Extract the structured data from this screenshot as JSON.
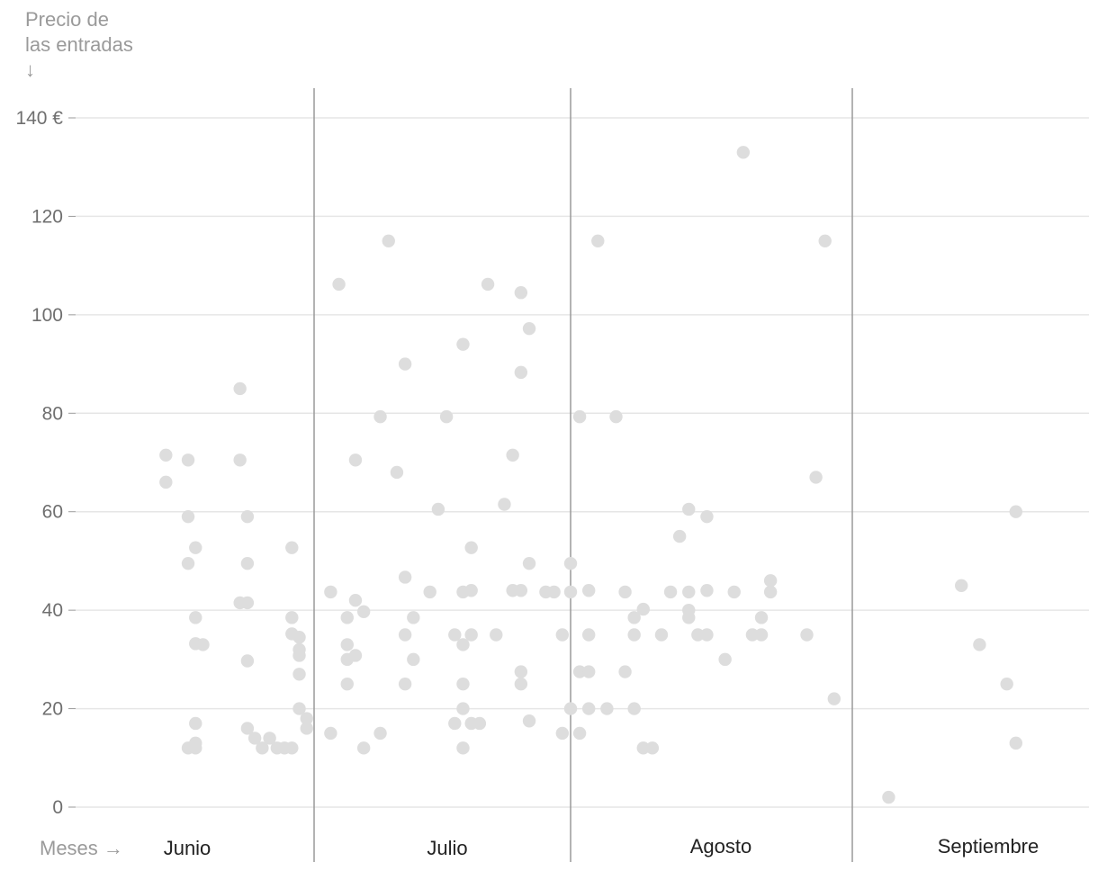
{
  "chart_data": {
    "type": "scatter",
    "ylabel_lines": [
      "Precio de",
      "las entradas",
      "↓"
    ],
    "xlabel": "Meses →",
    "y_ticks": [
      {
        "value": 0,
        "label": "0"
      },
      {
        "value": 20,
        "label": "20"
      },
      {
        "value": 40,
        "label": "40"
      },
      {
        "value": 60,
        "label": "60"
      },
      {
        "value": 80,
        "label": "80"
      },
      {
        "value": 100,
        "label": "100"
      },
      {
        "value": 120,
        "label": "120"
      },
      {
        "value": 140,
        "label": "140 €"
      }
    ],
    "ylim": [
      0,
      140
    ],
    "xlim": [
      "2023-06-01",
      "2023-09-30"
    ],
    "grid": true,
    "months": [
      {
        "label": "Junio",
        "start": "2023-06-01"
      },
      {
        "label": "Julio",
        "start": "2023-07-01"
      },
      {
        "label": "Agosto",
        "start": "2023-08-01"
      },
      {
        "label": "Septiembre",
        "start": "2023-09-01"
      }
    ],
    "month_boundaries": [
      "2023-07-01",
      "2023-08-01",
      "2023-09-01"
    ],
    "point_color": "#dddddd",
    "points": [
      {
        "x": "2023-06-11",
        "y": 71.5
      },
      {
        "x": "2023-06-11",
        "y": 66
      },
      {
        "x": "2023-06-14",
        "y": 70.5
      },
      {
        "x": "2023-06-14",
        "y": 59
      },
      {
        "x": "2023-06-14",
        "y": 49.5
      },
      {
        "x": "2023-06-14",
        "y": 12
      },
      {
        "x": "2023-06-15",
        "y": 52.7
      },
      {
        "x": "2023-06-15",
        "y": 38.5
      },
      {
        "x": "2023-06-15",
        "y": 33.2
      },
      {
        "x": "2023-06-15",
        "y": 17
      },
      {
        "x": "2023-06-15",
        "y": 13
      },
      {
        "x": "2023-06-15",
        "y": 12
      },
      {
        "x": "2023-06-16",
        "y": 33
      },
      {
        "x": "2023-06-21",
        "y": 85
      },
      {
        "x": "2023-06-21",
        "y": 70.5
      },
      {
        "x": "2023-06-21",
        "y": 41.5
      },
      {
        "x": "2023-06-22",
        "y": 59
      },
      {
        "x": "2023-06-22",
        "y": 49.5
      },
      {
        "x": "2023-06-22",
        "y": 41.5
      },
      {
        "x": "2023-06-22",
        "y": 29.7
      },
      {
        "x": "2023-06-22",
        "y": 16
      },
      {
        "x": "2023-06-23",
        "y": 14
      },
      {
        "x": "2023-06-24",
        "y": 12
      },
      {
        "x": "2023-06-25",
        "y": 14
      },
      {
        "x": "2023-06-26",
        "y": 12
      },
      {
        "x": "2023-06-27",
        "y": 12
      },
      {
        "x": "2023-06-28",
        "y": 12
      },
      {
        "x": "2023-06-28",
        "y": 52.7
      },
      {
        "x": "2023-06-28",
        "y": 38.5
      },
      {
        "x": "2023-06-28",
        "y": 35.2
      },
      {
        "x": "2023-06-29",
        "y": 34.5
      },
      {
        "x": "2023-06-29",
        "y": 32
      },
      {
        "x": "2023-06-29",
        "y": 30.8
      },
      {
        "x": "2023-06-29",
        "y": 27
      },
      {
        "x": "2023-06-29",
        "y": 20
      },
      {
        "x": "2023-06-30",
        "y": 18
      },
      {
        "x": "2023-06-30",
        "y": 16
      },
      {
        "x": "2023-07-03",
        "y": 43.7
      },
      {
        "x": "2023-07-03",
        "y": 15
      },
      {
        "x": "2023-07-04",
        "y": 106.2
      },
      {
        "x": "2023-07-05",
        "y": 38.5
      },
      {
        "x": "2023-07-05",
        "y": 33
      },
      {
        "x": "2023-07-05",
        "y": 30
      },
      {
        "x": "2023-07-05",
        "y": 25
      },
      {
        "x": "2023-07-06",
        "y": 70.5
      },
      {
        "x": "2023-07-06",
        "y": 42
      },
      {
        "x": "2023-07-06",
        "y": 30.8
      },
      {
        "x": "2023-07-07",
        "y": 39.7
      },
      {
        "x": "2023-07-07",
        "y": 12
      },
      {
        "x": "2023-07-09",
        "y": 79.3
      },
      {
        "x": "2023-07-09",
        "y": 15
      },
      {
        "x": "2023-07-10",
        "y": 115
      },
      {
        "x": "2023-07-11",
        "y": 68
      },
      {
        "x": "2023-07-12",
        "y": 90
      },
      {
        "x": "2023-07-12",
        "y": 46.7
      },
      {
        "x": "2023-07-12",
        "y": 35
      },
      {
        "x": "2023-07-12",
        "y": 25
      },
      {
        "x": "2023-07-13",
        "y": 38.5
      },
      {
        "x": "2023-07-13",
        "y": 30
      },
      {
        "x": "2023-07-15",
        "y": 43.7
      },
      {
        "x": "2023-07-16",
        "y": 60.5
      },
      {
        "x": "2023-07-17",
        "y": 79.3
      },
      {
        "x": "2023-07-18",
        "y": 35
      },
      {
        "x": "2023-07-18",
        "y": 17
      },
      {
        "x": "2023-07-19",
        "y": 94
      },
      {
        "x": "2023-07-19",
        "y": 43.7
      },
      {
        "x": "2023-07-19",
        "y": 33
      },
      {
        "x": "2023-07-19",
        "y": 25
      },
      {
        "x": "2023-07-19",
        "y": 20
      },
      {
        "x": "2023-07-19",
        "y": 12
      },
      {
        "x": "2023-07-20",
        "y": 52.7
      },
      {
        "x": "2023-07-20",
        "y": 44
      },
      {
        "x": "2023-07-20",
        "y": 35
      },
      {
        "x": "2023-07-20",
        "y": 17
      },
      {
        "x": "2023-07-21",
        "y": 17
      },
      {
        "x": "2023-07-22",
        "y": 106.2
      },
      {
        "x": "2023-07-23",
        "y": 35
      },
      {
        "x": "2023-07-24",
        "y": 61.5
      },
      {
        "x": "2023-07-25",
        "y": 71.5
      },
      {
        "x": "2023-07-25",
        "y": 44
      },
      {
        "x": "2023-07-26",
        "y": 104.5
      },
      {
        "x": "2023-07-26",
        "y": 88.3
      },
      {
        "x": "2023-07-26",
        "y": 44
      },
      {
        "x": "2023-07-26",
        "y": 27.5
      },
      {
        "x": "2023-07-26",
        "y": 25
      },
      {
        "x": "2023-07-27",
        "y": 97.2
      },
      {
        "x": "2023-07-27",
        "y": 49.5
      },
      {
        "x": "2023-07-27",
        "y": 17.5
      },
      {
        "x": "2023-07-29",
        "y": 43.7
      },
      {
        "x": "2023-07-30",
        "y": 43.7
      },
      {
        "x": "2023-07-31",
        "y": 35
      },
      {
        "x": "2023-07-31",
        "y": 15
      },
      {
        "x": "2023-08-01",
        "y": 49.5
      },
      {
        "x": "2023-08-01",
        "y": 43.7
      },
      {
        "x": "2023-08-01",
        "y": 20
      },
      {
        "x": "2023-08-02",
        "y": 79.3
      },
      {
        "x": "2023-08-02",
        "y": 27.5
      },
      {
        "x": "2023-08-02",
        "y": 15
      },
      {
        "x": "2023-08-03",
        "y": 44
      },
      {
        "x": "2023-08-03",
        "y": 35
      },
      {
        "x": "2023-08-03",
        "y": 27.5
      },
      {
        "x": "2023-08-03",
        "y": 20
      },
      {
        "x": "2023-08-04",
        "y": 115
      },
      {
        "x": "2023-08-05",
        "y": 20
      },
      {
        "x": "2023-08-06",
        "y": 79.3
      },
      {
        "x": "2023-08-07",
        "y": 43.7
      },
      {
        "x": "2023-08-07",
        "y": 27.5
      },
      {
        "x": "2023-08-08",
        "y": 38.5
      },
      {
        "x": "2023-08-08",
        "y": 35
      },
      {
        "x": "2023-08-08",
        "y": 20
      },
      {
        "x": "2023-08-09",
        "y": 40.2
      },
      {
        "x": "2023-08-09",
        "y": 12
      },
      {
        "x": "2023-08-10",
        "y": 12
      },
      {
        "x": "2023-08-11",
        "y": 35
      },
      {
        "x": "2023-08-12",
        "y": 43.7
      },
      {
        "x": "2023-08-13",
        "y": 55
      },
      {
        "x": "2023-08-14",
        "y": 60.5
      },
      {
        "x": "2023-08-14",
        "y": 43.7
      },
      {
        "x": "2023-08-14",
        "y": 40
      },
      {
        "x": "2023-08-14",
        "y": 38.5
      },
      {
        "x": "2023-08-15",
        "y": 35
      },
      {
        "x": "2023-08-16",
        "y": 59
      },
      {
        "x": "2023-08-16",
        "y": 44
      },
      {
        "x": "2023-08-16",
        "y": 35
      },
      {
        "x": "2023-08-18",
        "y": 30
      },
      {
        "x": "2023-08-19",
        "y": 43.7
      },
      {
        "x": "2023-08-20",
        "y": 133
      },
      {
        "x": "2023-08-21",
        "y": 35
      },
      {
        "x": "2023-08-22",
        "y": 38.5
      },
      {
        "x": "2023-08-22",
        "y": 35
      },
      {
        "x": "2023-08-23",
        "y": 46
      },
      {
        "x": "2023-08-23",
        "y": 43.7
      },
      {
        "x": "2023-08-27",
        "y": 35
      },
      {
        "x": "2023-08-28",
        "y": 67
      },
      {
        "x": "2023-08-29",
        "y": 115
      },
      {
        "x": "2023-08-30",
        "y": 22
      },
      {
        "x": "2023-09-05",
        "y": 2
      },
      {
        "x": "2023-09-13",
        "y": 45
      },
      {
        "x": "2023-09-15",
        "y": 33
      },
      {
        "x": "2023-09-18",
        "y": 25
      },
      {
        "x": "2023-09-19",
        "y": 60
      },
      {
        "x": "2023-09-19",
        "y": 13
      }
    ]
  }
}
